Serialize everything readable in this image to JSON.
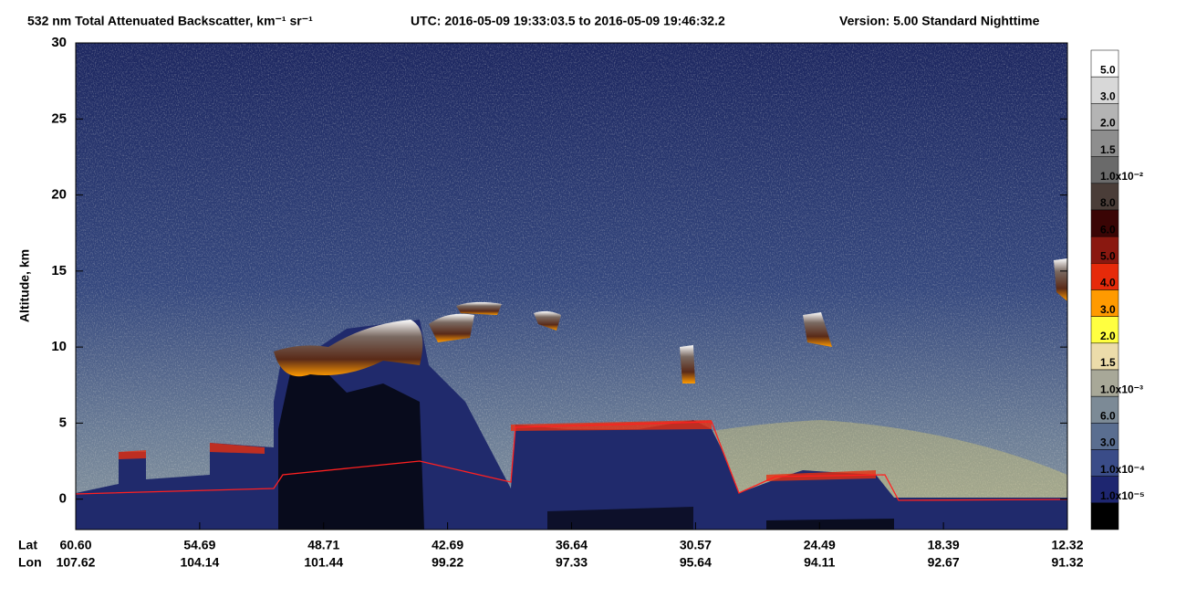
{
  "chart_data": {
    "type": "curtain",
    "title": "532 nm Total Attenuated Backscatter, km⁻¹ sr⁻¹",
    "utc": "UTC:  2016-05-09 19:33:03.5  to  2016-05-09 19:46:32.2",
    "version": "Version: 5.00  Standard  Nighttime",
    "y_label": "Altitude, km",
    "ylim": [
      -2,
      30
    ],
    "yticks": [
      0,
      5,
      10,
      15,
      20,
      25,
      30
    ],
    "lat_title": "Lat",
    "lon_title": "Lon",
    "lat_labels": [
      "60.60",
      "54.69",
      "48.71",
      "42.69",
      "36.64",
      "30.57",
      "24.49",
      "18.39",
      "12.32"
    ],
    "lon_labels": [
      "107.62",
      "104.14",
      "101.44",
      "99.22",
      "97.33",
      "95.64",
      "94.11",
      "92.67",
      "91.32"
    ],
    "colorbar": {
      "colors": [
        "#ffffff",
        "#d8d8d8",
        "#b4b4b4",
        "#8e8e8e",
        "#6a6a6a",
        "#4a3d38",
        "#3a0505",
        "#8a1810",
        "#e62a0a",
        "#ff9a00",
        "#ffff40",
        "#ecdcaa",
        "#a8a898",
        "#7c8a96",
        "#5a6e90",
        "#3a4c88",
        "#1e2670",
        "#000000"
      ],
      "labels": [
        "5.0",
        "3.0",
        "2.0",
        "1.5",
        "1.0x10⁻²",
        "8.0",
        "6.0",
        "5.0",
        "4.0",
        "3.0",
        "2.0",
        "1.5",
        "1.0x10⁻³",
        "6.0",
        "3.0",
        "1.0x10⁻⁴",
        "1.0x10⁻⁵"
      ]
    }
  }
}
